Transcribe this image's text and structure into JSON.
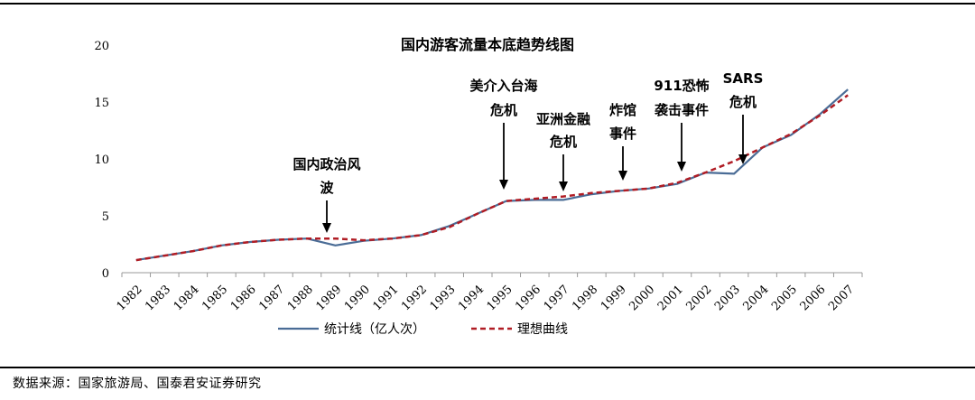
{
  "chart_data": {
    "type": "line",
    "title": "国内游客流量本底趋势线图",
    "x": [
      "1982",
      "1983",
      "1984",
      "1985",
      "1986",
      "1987",
      "1988",
      "1989",
      "1990",
      "1991",
      "1992",
      "1993",
      "1994",
      "1995",
      "1996",
      "1997",
      "1998",
      "1999",
      "2000",
      "2001",
      "2002",
      "2003",
      "2004",
      "2005",
      "2006",
      "2007"
    ],
    "ylim": [
      0,
      20
    ],
    "yticks": [
      "0",
      "5",
      "10",
      "15",
      "20"
    ],
    "series": [
      {
        "name": "统计线（亿人次）",
        "color": "#4a6c96",
        "dash": "solid",
        "values": [
          1.1,
          1.5,
          1.9,
          2.4,
          2.7,
          2.9,
          3.0,
          2.4,
          2.8,
          3.0,
          3.3,
          4.1,
          5.2,
          6.3,
          6.4,
          6.4,
          6.9,
          7.2,
          7.4,
          7.8,
          8.8,
          8.7,
          11.0,
          12.1,
          13.9,
          16.1
        ]
      },
      {
        "name": "理想曲线",
        "color": "#b01c24",
        "dash": "dashed",
        "values": [
          1.1,
          1.5,
          1.9,
          2.4,
          2.7,
          2.9,
          3.0,
          3.0,
          2.85,
          3.0,
          3.3,
          4.0,
          5.2,
          6.3,
          6.5,
          6.7,
          7.0,
          7.2,
          7.4,
          7.9,
          8.8,
          9.8,
          11.0,
          12.2,
          13.8,
          15.6
        ]
      }
    ],
    "annotations": [
      {
        "lines": [
          "国内政治风",
          "波"
        ],
        "year": "1989"
      },
      {
        "lines": [
          "美介入台海",
          "危机"
        ],
        "year": "1995"
      },
      {
        "lines": [
          "亚洲金融",
          "危机"
        ],
        "year": "1997"
      },
      {
        "lines": [
          "炸馆",
          "事件"
        ],
        "year": "1999"
      },
      {
        "lines": [
          "911恐怖",
          "袭击事件"
        ],
        "year": "2001"
      },
      {
        "lines": [
          "SARS",
          "危机"
        ],
        "year": "2003"
      }
    ],
    "legend_position": "bottom"
  },
  "source_text": "数据来源：国家旅游局、国泰君安证券研究"
}
